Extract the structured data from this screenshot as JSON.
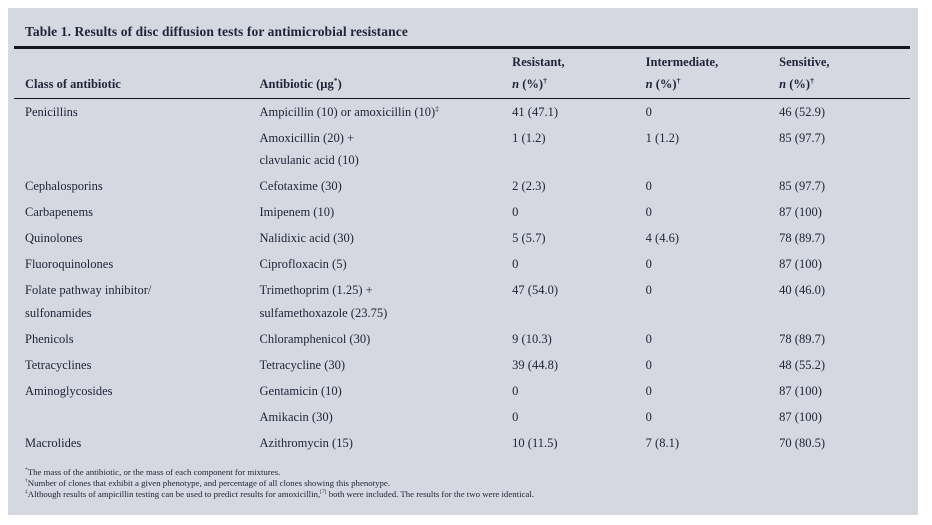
{
  "document": {
    "title": "Table 1. Results of disc diffusion tests for antimicrobial resistance"
  },
  "colors": {
    "panel_background": "#d5d8e0",
    "text": "#20263a",
    "rule": "#14161d"
  },
  "table": {
    "headers": [
      "Class of antibiotic",
      "Antibiotic (µg^*)",
      "Resistant,\nn (%)^†",
      "Intermediate,\nn (%)^†",
      "Sensitive,\nn (%)^†"
    ],
    "rows": [
      [
        "Penicillins",
        "Ampicillin (10) or amoxicillin (10)^‡",
        "41 (47.1)",
        "0",
        "46 (52.9)"
      ],
      [
        "",
        "Amoxicillin (20) +\nclavulanic acid (10)",
        "1 (1.2)",
        "1 (1.2)",
        "85 (97.7)"
      ],
      [
        "Cephalosporins",
        "Cefotaxime (30)",
        "2 (2.3)",
        "0",
        "85 (97.7)"
      ],
      [
        "Carbapenems",
        "Imipenem (10)",
        "0",
        "0",
        "87 (100)"
      ],
      [
        "Quinolones",
        "Nalidixic acid (30)",
        "5 (5.7)",
        "4 (4.6)",
        "78 (89.7)"
      ],
      [
        "Fluoroquinolones",
        "Ciprofloxacin (5)",
        "0",
        "0",
        "87 (100)"
      ],
      [
        "Folate pathway inhibitor/\nsulfonamides",
        "Trimethoprim (1.25) +\nsulfamethoxazole (23.75)",
        "47 (54.0)",
        "0",
        "40 (46.0)"
      ],
      [
        "Phenicols",
        "Chloramphenicol (30)",
        "9 (10.3)",
        "0",
        "78 (89.7)"
      ],
      [
        "Tetracyclines",
        "Tetracycline (30)",
        "39 (44.8)",
        "0",
        "48 (55.2)"
      ],
      [
        "Aminoglycosides",
        "Gentamicin (10)",
        "0",
        "0",
        "87 (100)"
      ],
      [
        "",
        "Amikacin (30)",
        "0",
        "0",
        "87 (100)"
      ],
      [
        "Macrolides",
        "Azithromycin (15)",
        "10 (11.5)",
        "7 (8.1)",
        "70 (80.5)"
      ]
    ],
    "footnotes": [
      "^*The mass of the antibiotic, or the mass of each component for mixtures.",
      "^†Number of clones that exhibit a given phenotype, and percentage of all clones showing this phenotype.",
      "^‡Although results of ampicillin testing can be used to predict results for amoxicillin,^[7] both were included. The results for the two were identical."
    ]
  }
}
